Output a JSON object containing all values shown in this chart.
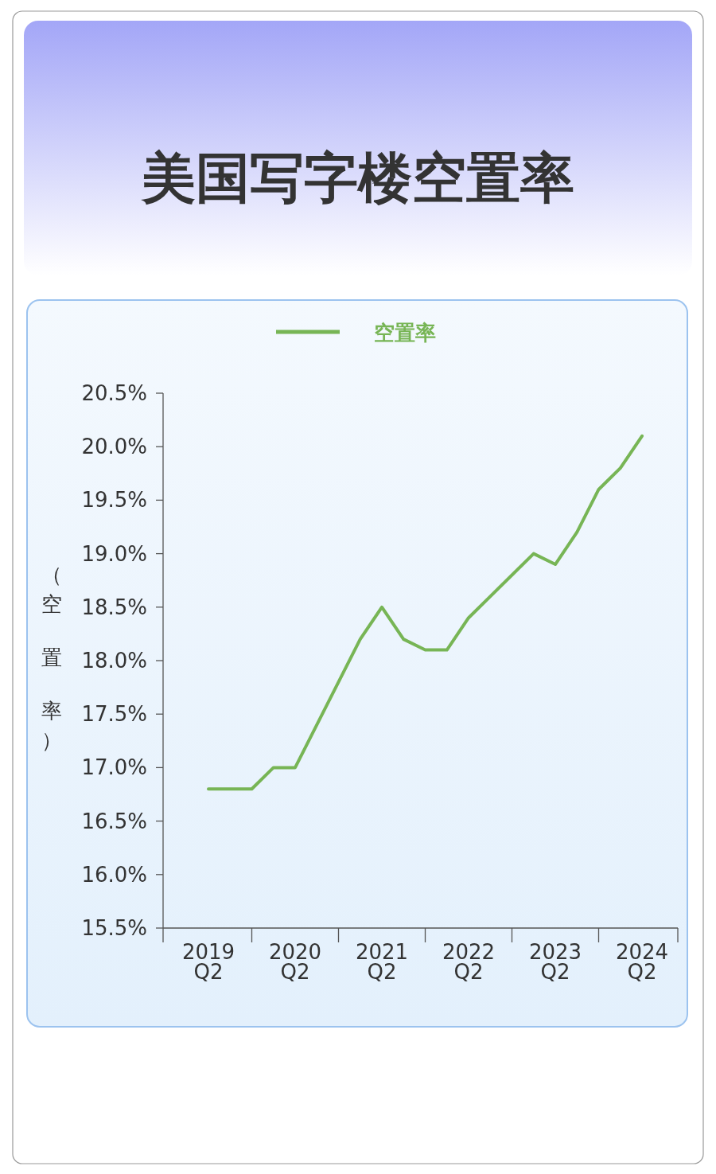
{
  "chart_data": {
    "type": "line",
    "title": "美国写字楼空置率",
    "ylabel": "（空置率）",
    "categories": [
      "2019 Q2",
      null,
      null,
      null,
      "2020 Q2",
      null,
      null,
      null,
      "2021 Q2",
      null,
      null,
      null,
      "2022 Q2",
      null,
      null,
      null,
      "2023 Q2",
      null,
      null,
      null,
      "2024 Q2"
    ],
    "series": [
      {
        "name": "空置率",
        "color": "#77b555",
        "values": [
          16.8,
          16.8,
          16.8,
          17.0,
          17.0,
          17.4,
          17.8,
          18.2,
          18.5,
          18.2,
          18.1,
          18.1,
          18.4,
          18.6,
          18.8,
          19.0,
          18.9,
          19.2,
          19.6,
          19.8,
          20.1
        ]
      }
    ],
    "ylim": [
      15.5,
      20.5
    ],
    "yticks": [
      {
        "value": 15.5,
        "label": "15.5%"
      },
      {
        "value": 16,
        "label": "16.0%"
      },
      {
        "value": 16.5,
        "label": "16.5%"
      },
      {
        "value": 17,
        "label": "17.0%"
      },
      {
        "value": 17.5,
        "label": "17.5%"
      },
      {
        "value": 18,
        "label": "18.0%"
      },
      {
        "value": 18.5,
        "label": "18.5%"
      },
      {
        "value": 19,
        "label": "19.0%"
      },
      {
        "value": 19.5,
        "label": "19.5%"
      },
      {
        "value": 20,
        "label": "20.0%"
      },
      {
        "value": 20.5,
        "label": "20.5%"
      }
    ],
    "legend": "top",
    "grid": false,
    "marker": "none",
    "line_style": "solid"
  }
}
